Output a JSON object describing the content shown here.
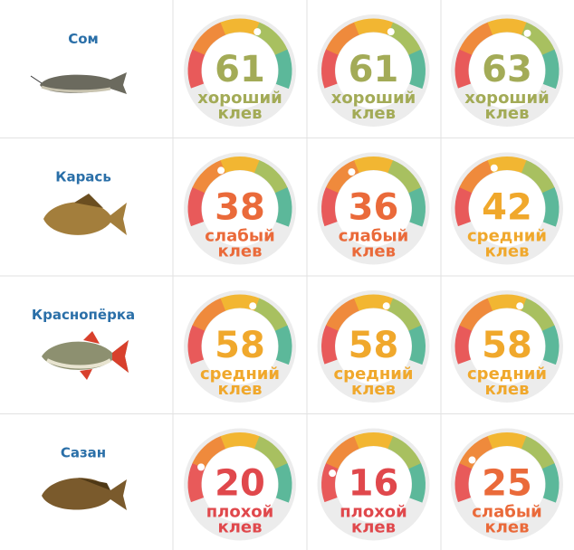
{
  "rows": [
    {
      "fish": "Сом",
      "cells": [
        {
          "value": 61,
          "label": "хороший клев",
          "color": "#a3ab57"
        },
        {
          "value": 61,
          "label": "хороший клев",
          "color": "#a3ab57"
        },
        {
          "value": 63,
          "label": "хороший клев",
          "color": "#a3ab57"
        }
      ]
    },
    {
      "fish": "Карась",
      "cells": [
        {
          "value": 38,
          "label": "слабый клев",
          "color": "#ea6a3a"
        },
        {
          "value": 36,
          "label": "слабый клев",
          "color": "#ea6a3a"
        },
        {
          "value": 42,
          "label": "средний клев",
          "color": "#f0a82c"
        }
      ]
    },
    {
      "fish": "Краснопёрка",
      "cells": [
        {
          "value": 58,
          "label": "средний клев",
          "color": "#f0a82c"
        },
        {
          "value": 58,
          "label": "средний клев",
          "color": "#f0a82c"
        },
        {
          "value": 58,
          "label": "средний клев",
          "color": "#f0a82c"
        }
      ]
    },
    {
      "fish": "Сазан",
      "cells": [
        {
          "value": 20,
          "label": "плохой клев",
          "color": "#e0484c"
        },
        {
          "value": 16,
          "label": "плохой клев",
          "color": "#e0484c"
        },
        {
          "value": 25,
          "label": "слабый клев",
          "color": "#ea6a3a"
        }
      ]
    }
  ]
}
